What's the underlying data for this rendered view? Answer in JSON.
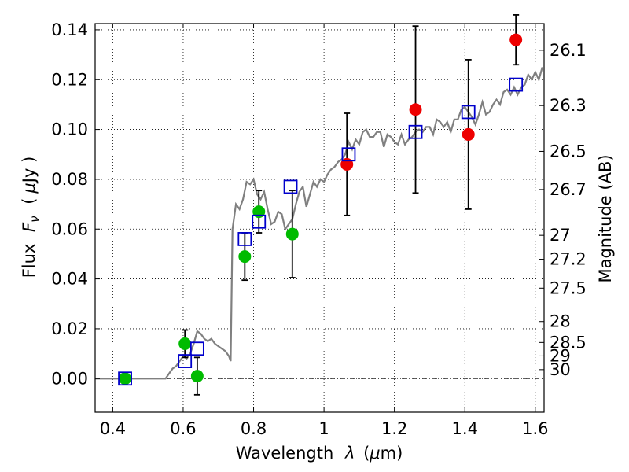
{
  "chart_data": {
    "type": "scatter",
    "xlabel_text": "Wavelength",
    "xlabel_symbol": "λ",
    "xlabel_unit_open": "(",
    "xlabel_unit_mu": "μ",
    "xlabel_unit_rest": "m)",
    "ylabel_text": "Flux",
    "ylabel_symbol": "F",
    "ylabel_sub": "ν",
    "ylabel_unit_open": "(",
    "ylabel_unit_mu": "μ",
    "ylabel_unit_rest": "Jy )",
    "y2label": "Magnitude (AB)",
    "xlim": [
      0.35,
      1.625
    ],
    "ylim": [
      -0.0135,
      0.1425
    ],
    "grid": true,
    "x_ticks": [
      0.4,
      0.6,
      0.8,
      1.0,
      1.2,
      1.4,
      1.6
    ],
    "x_tick_labels": [
      "0.4",
      "0.6",
      "0.8",
      "1",
      "1.2",
      "1.4",
      "1.6"
    ],
    "y_ticks": [
      0.0,
      0.02,
      0.04,
      0.06,
      0.08,
      0.1,
      0.12,
      0.14
    ],
    "y_tick_labels": [
      "0.00",
      "0.02",
      "0.04",
      "0.06",
      "0.08",
      "0.10",
      "0.12",
      "0.14"
    ],
    "y2_ticks": [
      {
        "label": "26.1",
        "flux": 0.1318
      },
      {
        "label": "26.3",
        "flux": 0.1096
      },
      {
        "label": "26.5",
        "flux": 0.0912
      },
      {
        "label": "26.7",
        "flux": 0.0759
      },
      {
        "label": "27",
        "flux": 0.0575
      },
      {
        "label": "27.2",
        "flux": 0.0479
      },
      {
        "label": "27.5",
        "flux": 0.0363
      },
      {
        "label": "28",
        "flux": 0.0229
      },
      {
        "label": "28.5",
        "flux": 0.0145
      },
      {
        "label": "29",
        "flux": 0.0091
      },
      {
        "label": "30",
        "flux": 0.0036
      }
    ],
    "series": [
      {
        "color": "#808080",
        "style": "line",
        "x": [
          0.35,
          0.4,
          0.45,
          0.5,
          0.55,
          0.56,
          0.57,
          0.58,
          0.59,
          0.6,
          0.61,
          0.62,
          0.63,
          0.64,
          0.65,
          0.66,
          0.67,
          0.68,
          0.69,
          0.7,
          0.71,
          0.72,
          0.73,
          0.735,
          0.74,
          0.75,
          0.76,
          0.77,
          0.78,
          0.79,
          0.8,
          0.81,
          0.82,
          0.83,
          0.84,
          0.85,
          0.86,
          0.87,
          0.88,
          0.89,
          0.9,
          0.91,
          0.92,
          0.93,
          0.94,
          0.95,
          0.96,
          0.97,
          0.98,
          0.99,
          1.0,
          1.01,
          1.02,
          1.03,
          1.04,
          1.05,
          1.06,
          1.07,
          1.08,
          1.09,
          1.1,
          1.11,
          1.12,
          1.13,
          1.14,
          1.15,
          1.16,
          1.17,
          1.18,
          1.19,
          1.2,
          1.21,
          1.22,
          1.23,
          1.24,
          1.25,
          1.26,
          1.27,
          1.28,
          1.29,
          1.3,
          1.31,
          1.32,
          1.33,
          1.34,
          1.35,
          1.36,
          1.37,
          1.38,
          1.39,
          1.4,
          1.41,
          1.42,
          1.43,
          1.44,
          1.45,
          1.46,
          1.47,
          1.48,
          1.49,
          1.5,
          1.51,
          1.52,
          1.53,
          1.54,
          1.55,
          1.56,
          1.57,
          1.58,
          1.59,
          1.6,
          1.61,
          1.62
        ],
        "y": [
          0.0,
          0.0,
          0.0,
          0.0,
          0.0,
          0.002,
          0.004,
          0.005,
          0.007,
          0.009,
          0.008,
          0.01,
          0.014,
          0.019,
          0.018,
          0.016,
          0.015,
          0.016,
          0.014,
          0.013,
          0.012,
          0.011,
          0.009,
          0.007,
          0.06,
          0.07,
          0.068,
          0.072,
          0.079,
          0.078,
          0.08,
          0.074,
          0.072,
          0.075,
          0.068,
          0.062,
          0.063,
          0.067,
          0.066,
          0.06,
          0.062,
          0.064,
          0.07,
          0.075,
          0.077,
          0.069,
          0.074,
          0.079,
          0.077,
          0.08,
          0.079,
          0.082,
          0.084,
          0.085,
          0.087,
          0.088,
          0.09,
          0.095,
          0.092,
          0.096,
          0.094,
          0.099,
          0.1,
          0.097,
          0.097,
          0.099,
          0.099,
          0.093,
          0.098,
          0.097,
          0.095,
          0.094,
          0.098,
          0.094,
          0.096,
          0.097,
          0.099,
          0.1,
          0.099,
          0.101,
          0.101,
          0.098,
          0.104,
          0.103,
          0.101,
          0.103,
          0.099,
          0.104,
          0.104,
          0.108,
          0.109,
          0.107,
          0.105,
          0.102,
          0.106,
          0.111,
          0.106,
          0.107,
          0.11,
          0.112,
          0.11,
          0.115,
          0.116,
          0.114,
          0.117,
          0.114,
          0.117,
          0.118,
          0.122,
          0.12,
          0.123,
          0.12,
          0.125
        ]
      },
      {
        "color": "#0000cc",
        "style": "open-square",
        "x": [
          0.435,
          0.605,
          0.64,
          0.775,
          0.815,
          0.905,
          1.07,
          1.26,
          1.41,
          1.545
        ],
        "y": [
          0.0,
          0.007,
          0.012,
          0.056,
          0.063,
          0.077,
          0.09,
          0.099,
          0.107,
          0.118
        ]
      },
      {
        "color": "#00bb00",
        "style": "filled-circle",
        "x": [
          0.435,
          0.605,
          0.64,
          0.775,
          0.815,
          0.91
        ],
        "y": [
          0.0,
          0.014,
          0.001,
          0.049,
          0.067,
          0.058
        ],
        "yerr": [
          null,
          0.0055,
          0.0075,
          0.0095,
          0.0085,
          0.0175
        ]
      },
      {
        "color": "#ee0000",
        "style": "filled-circle",
        "x": [
          1.065,
          1.26,
          1.41,
          1.545
        ],
        "y": [
          0.086,
          0.108,
          0.098,
          0.136
        ],
        "yerr": [
          0.0205,
          0.0335,
          0.03,
          0.01
        ]
      }
    ]
  }
}
